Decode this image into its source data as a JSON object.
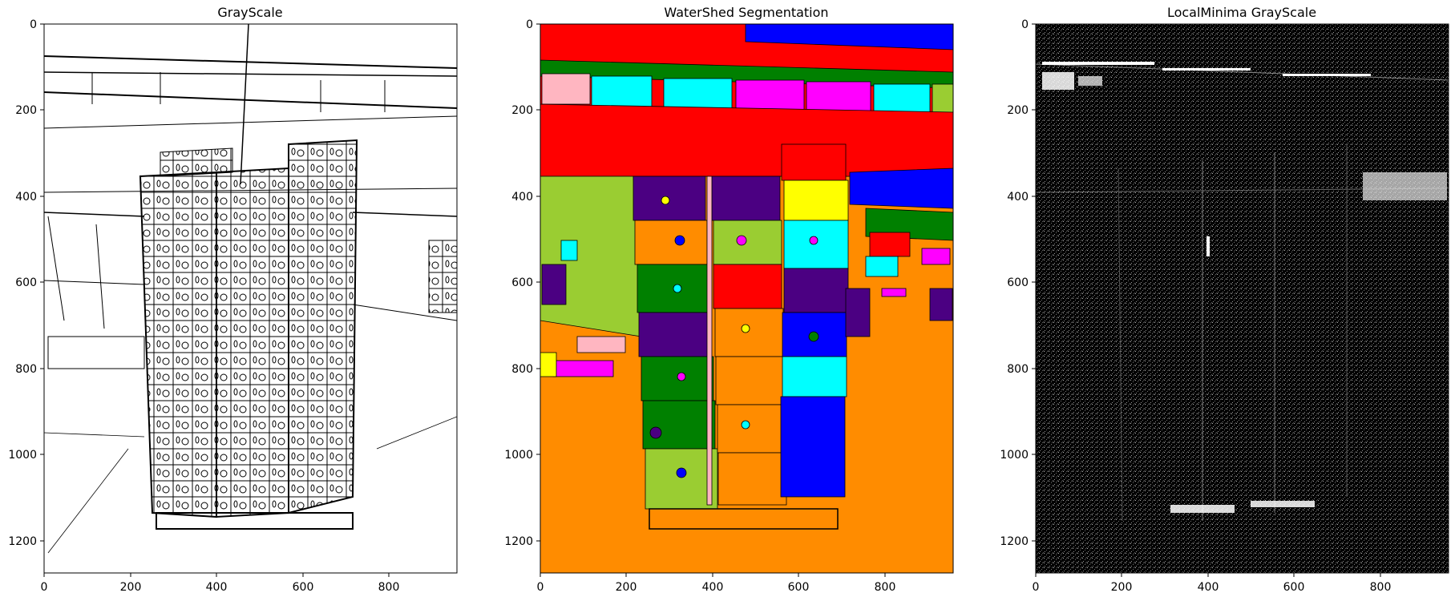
{
  "panels": [
    {
      "title": "GrayScale",
      "xticks": [
        "0",
        "200",
        "400",
        "600",
        "800"
      ],
      "yticks": [
        "0",
        "200",
        "400",
        "600",
        "800",
        "1000",
        "1200"
      ]
    },
    {
      "title": "WaterShed Segmentation",
      "xticks": [
        "0",
        "200",
        "400",
        "600",
        "800"
      ],
      "yticks": [
        "0",
        "200",
        "400",
        "600",
        "800",
        "1000",
        "1200"
      ]
    },
    {
      "title": "LocalMinima GrayScale",
      "xticks": [
        "0",
        "200",
        "400",
        "600",
        "800"
      ],
      "yticks": [
        "0",
        "200",
        "400",
        "600",
        "800",
        "1000",
        "1200"
      ]
    }
  ],
  "colors": {
    "red": "#ff0000",
    "blue": "#0000ff",
    "orange": "#ff8c00",
    "green": "#008000",
    "yellowgreen": "#9acd32",
    "cyan": "#00ffff",
    "magenta": "#ff00ff",
    "indigo": "#4b0082",
    "yellow": "#ffff00",
    "pink": "#ffb6c1"
  }
}
